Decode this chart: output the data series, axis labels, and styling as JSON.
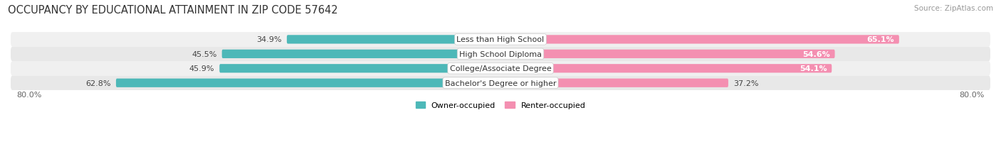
{
  "title": "OCCUPANCY BY EDUCATIONAL ATTAINMENT IN ZIP CODE 57642",
  "source": "Source: ZipAtlas.com",
  "categories": [
    "Less than High School",
    "High School Diploma",
    "College/Associate Degree",
    "Bachelor's Degree or higher"
  ],
  "owner_values": [
    34.9,
    45.5,
    45.9,
    62.8
  ],
  "renter_values": [
    65.1,
    54.6,
    54.1,
    37.2
  ],
  "owner_color": "#4db8b8",
  "renter_color": "#f48fb1",
  "row_bg_colors": [
    "#f0f0f0",
    "#e8e8e8",
    "#f0f0f0",
    "#e8e8e8"
  ],
  "xlim_left": -80.0,
  "xlim_right": 80.0,
  "axis_label_left": "80.0%",
  "axis_label_right": "80.0%",
  "legend_owner": "Owner-occupied",
  "legend_renter": "Renter-occupied",
  "title_fontsize": 10.5,
  "source_fontsize": 7.5,
  "label_fontsize": 8.0,
  "cat_fontsize": 8.0,
  "bar_height": 0.6,
  "figsize": [
    14.06,
    2.32
  ],
  "dpi": 100
}
